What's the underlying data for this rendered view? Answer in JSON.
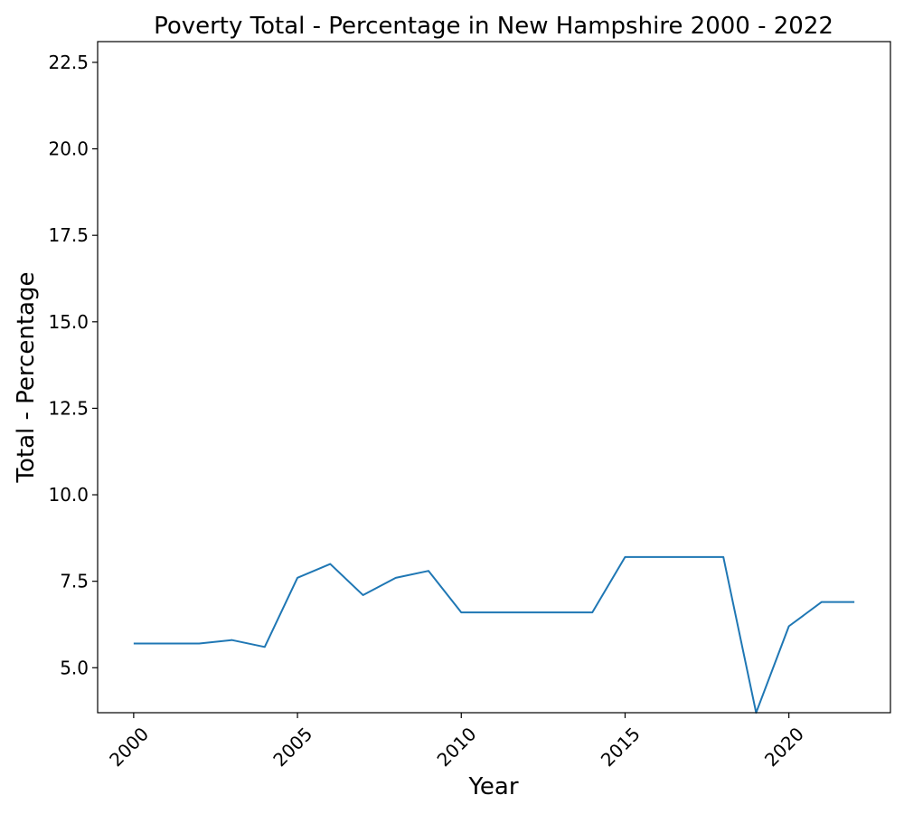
{
  "chart_data": {
    "type": "line",
    "title": "Poverty Total - Percentage in New Hampshire 2000 - 2022",
    "xlabel": "Year",
    "ylabel": "Total - Percentage",
    "xlim": [
      1998.9,
      2023.1
    ],
    "ylim": [
      3.7,
      23.1
    ],
    "xticks": [
      2000,
      2005,
      2010,
      2015,
      2020
    ],
    "xtick_labels": [
      "2000",
      "2005",
      "2010",
      "2015",
      "2020"
    ],
    "yticks": [
      5.0,
      7.5,
      10.0,
      12.5,
      15.0,
      17.5,
      20.0,
      22.5
    ],
    "ytick_labels": [
      "5.0",
      "7.5",
      "10.0",
      "12.5",
      "15.0",
      "17.5",
      "20.0",
      "22.5"
    ],
    "grid": false,
    "line_color": "#1f77b4",
    "series": [
      {
        "x": [
          2000,
          2001,
          2002,
          2003,
          2004,
          2005,
          2006,
          2007,
          2008,
          2009,
          2010,
          2011,
          2012,
          2013,
          2014,
          2015,
          2016,
          2017,
          2018,
          2019,
          2020,
          2021,
          2022
        ],
        "values": [
          5.7,
          5.7,
          5.7,
          5.8,
          5.6,
          7.6,
          8.0,
          7.1,
          7.6,
          7.8,
          6.6,
          6.6,
          6.6,
          6.6,
          6.6,
          8.2,
          8.2,
          8.2,
          8.2,
          3.7,
          6.2,
          6.9,
          6.9
        ]
      }
    ]
  }
}
